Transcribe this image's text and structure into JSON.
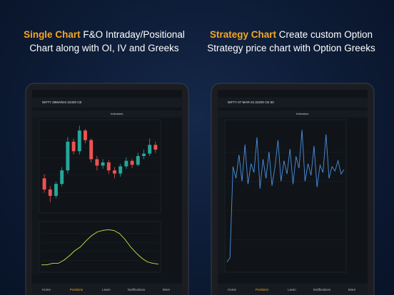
{
  "headings": [
    {
      "highlight": "Single Chart",
      "text": "F&O Intraday/Positional Chart along with OI, IV and Greeks"
    },
    {
      "highlight": "Strategy Chart",
      "text": "Create custom Option Strategy price chart with Option Greeks"
    }
  ],
  "screens": [
    {
      "title": "NIFTY 28MAR24 22400 CE",
      "toolbar": "Indicators",
      "nav": [
        "Home",
        "Positions",
        "Learn",
        "Notifications",
        "More"
      ]
    },
    {
      "title": "NIFTY 07-MAR-24 22200 CE 50",
      "toolbar": "Indicators",
      "nav": [
        "Home",
        "Positions",
        "Learn",
        "Notifications",
        "More"
      ]
    }
  ],
  "chart_data": [
    {
      "type": "candlestick",
      "open": [
        190,
        176,
        168,
        183,
        200,
        236,
        224,
        250,
        238,
        214,
        206,
        210,
        200,
        196,
        205,
        212,
        207,
        218,
        221,
        232
      ],
      "close": [
        176,
        168,
        183,
        200,
        236,
        224,
        250,
        238,
        214,
        206,
        210,
        200,
        196,
        205,
        212,
        207,
        218,
        221,
        232,
        226
      ],
      "high": [
        195,
        180,
        186,
        204,
        242,
        240,
        256,
        252,
        240,
        218,
        214,
        213,
        204,
        208,
        216,
        214,
        222,
        226,
        240,
        236
      ],
      "low": [
        172,
        160,
        165,
        180,
        196,
        220,
        220,
        234,
        210,
        200,
        202,
        196,
        190,
        192,
        202,
        203,
        205,
        214,
        218,
        222
      ],
      "up_color": "#26a69a",
      "down_color": "#ef5350",
      "ylim": [
        150,
        260
      ]
    },
    {
      "type": "line",
      "color": "#c8e64a",
      "values": [
        6,
        6,
        8,
        8,
        12,
        18,
        25,
        30,
        38,
        45,
        50,
        52,
        53,
        52,
        48,
        40,
        30,
        22,
        15,
        10,
        8,
        7
      ],
      "ylim": [
        0,
        60
      ]
    },
    {
      "type": "line",
      "color": "#4a90e2",
      "values": [
        5,
        8,
        70,
        62,
        78,
        60,
        85,
        58,
        72,
        66,
        90,
        55,
        75,
        62,
        80,
        57,
        70,
        88,
        60,
        74,
        65,
        82,
        58,
        77,
        69,
        95,
        60,
        72,
        64,
        84,
        56,
        71,
        66,
        92,
        62,
        70,
        67,
        74,
        65,
        68
      ],
      "ylim": [
        0,
        100
      ]
    }
  ]
}
